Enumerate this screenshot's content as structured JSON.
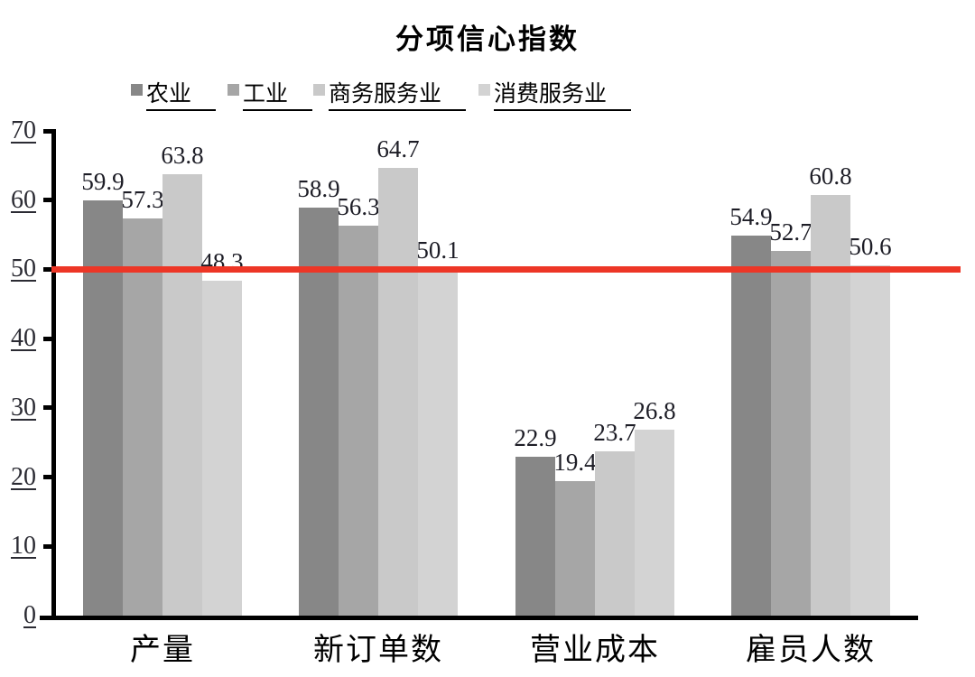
{
  "title": "分项信心指数",
  "chart_data": {
    "type": "bar",
    "title": "分项信心指数",
    "categories": [
      "产量",
      "新订单数",
      "营业成本",
      "雇员人数"
    ],
    "series": [
      {
        "name": "农业",
        "color": "#878787",
        "values": [
          59.9,
          58.9,
          22.9,
          54.9
        ]
      },
      {
        "name": "工业",
        "color": "#a6a6a6",
        "values": [
          57.3,
          56.3,
          19.4,
          52.7
        ]
      },
      {
        "name": "商务服务业",
        "color": "#c9c9c9",
        "values": [
          63.8,
          64.7,
          23.7,
          60.8
        ]
      },
      {
        "name": "消费服务业",
        "color": "#d3d3d3",
        "values": [
          48.3,
          50.1,
          26.8,
          50.6
        ]
      }
    ],
    "ylim": [
      0,
      70
    ],
    "yticks": [
      0,
      10,
      20,
      30,
      40,
      50,
      60,
      70
    ],
    "reference_line": {
      "value": 50,
      "color": "#ed3626"
    },
    "value_labels": true,
    "grid": false,
    "legend_position": "top"
  }
}
